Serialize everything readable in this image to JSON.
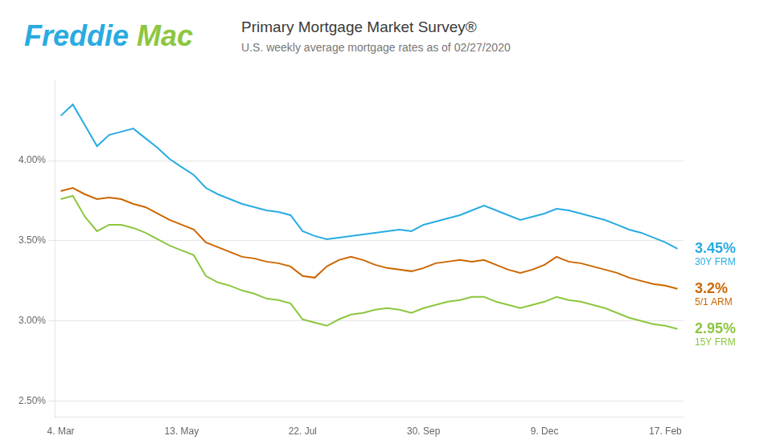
{
  "chart_data": {
    "type": "line",
    "title": "Primary Mortgage Market Survey®",
    "subtitle": "U.S. weekly average mortgage rates as of 02/27/2020",
    "categories": [
      "4. Mar",
      null,
      null,
      null,
      null,
      null,
      null,
      null,
      null,
      null,
      "13. May",
      null,
      null,
      null,
      null,
      null,
      null,
      null,
      null,
      null,
      "22. Jul",
      null,
      null,
      null,
      null,
      null,
      null,
      null,
      null,
      null,
      "30. Sep",
      null,
      null,
      null,
      null,
      null,
      null,
      null,
      null,
      null,
      "9. Dec",
      null,
      null,
      null,
      null,
      null,
      null,
      null,
      null,
      null,
      "17. Feb",
      null
    ],
    "series": [
      {
        "name": "30Y FRM",
        "color": "#29ABE2",
        "values": [
          4.28,
          4.35,
          4.22,
          4.09,
          4.16,
          4.18,
          4.2,
          4.14,
          4.08,
          4.01,
          3.96,
          3.91,
          3.83,
          3.79,
          3.76,
          3.73,
          3.71,
          3.69,
          3.68,
          3.66,
          3.56,
          3.53,
          3.51,
          3.52,
          3.53,
          3.54,
          3.55,
          3.56,
          3.57,
          3.56,
          3.6,
          3.62,
          3.64,
          3.66,
          3.69,
          3.72,
          3.69,
          3.66,
          3.63,
          3.65,
          3.67,
          3.7,
          3.69,
          3.67,
          3.65,
          3.63,
          3.6,
          3.57,
          3.55,
          3.52,
          3.49,
          3.45
        ]
      },
      {
        "name": "5/1 ARM",
        "color": "#CC6600",
        "values": [
          3.81,
          3.83,
          3.79,
          3.76,
          3.77,
          3.76,
          3.73,
          3.71,
          3.67,
          3.63,
          3.6,
          3.57,
          3.49,
          3.46,
          3.43,
          3.4,
          3.39,
          3.37,
          3.36,
          3.34,
          3.28,
          3.27,
          3.34,
          3.38,
          3.4,
          3.38,
          3.35,
          3.33,
          3.32,
          3.31,
          3.33,
          3.36,
          3.37,
          3.38,
          3.37,
          3.38,
          3.35,
          3.32,
          3.3,
          3.32,
          3.35,
          3.4,
          3.37,
          3.36,
          3.34,
          3.32,
          3.3,
          3.27,
          3.25,
          3.23,
          3.22,
          3.2
        ]
      },
      {
        "name": "15Y FRM",
        "color": "#8DC63F",
        "values": [
          3.76,
          3.78,
          3.65,
          3.56,
          3.6,
          3.6,
          3.58,
          3.55,
          3.51,
          3.47,
          3.44,
          3.41,
          3.28,
          3.24,
          3.22,
          3.19,
          3.17,
          3.14,
          3.13,
          3.11,
          3.01,
          2.99,
          2.97,
          3.01,
          3.04,
          3.05,
          3.07,
          3.08,
          3.07,
          3.05,
          3.08,
          3.1,
          3.12,
          3.13,
          3.15,
          3.15,
          3.12,
          3.1,
          3.08,
          3.1,
          3.12,
          3.15,
          3.13,
          3.12,
          3.1,
          3.08,
          3.05,
          3.02,
          3.0,
          2.98,
          2.97,
          2.95
        ]
      }
    ],
    "ylim": [
      2.4,
      4.5
    ],
    "yticks": [
      {
        "value": 2.5,
        "label": "2.50%"
      },
      {
        "value": 3.0,
        "label": "3.00%"
      },
      {
        "value": 3.5,
        "label": "3.50%"
      },
      {
        "value": 4.0,
        "label": "4.00%"
      }
    ],
    "grid": true,
    "annotations": [
      {
        "text": "3.45%",
        "y": 3.45,
        "series": "30Y FRM"
      },
      {
        "text": "3.2%",
        "y": 3.2,
        "series": "5/1 ARM"
      },
      {
        "text": "2.95%",
        "y": 2.95,
        "series": "15Y FRM"
      },
      {
        "text": "Freddie",
        "color": "#29ABE2"
      },
      {
        "text": "Mac",
        "color": "#8DC63F"
      }
    ]
  }
}
